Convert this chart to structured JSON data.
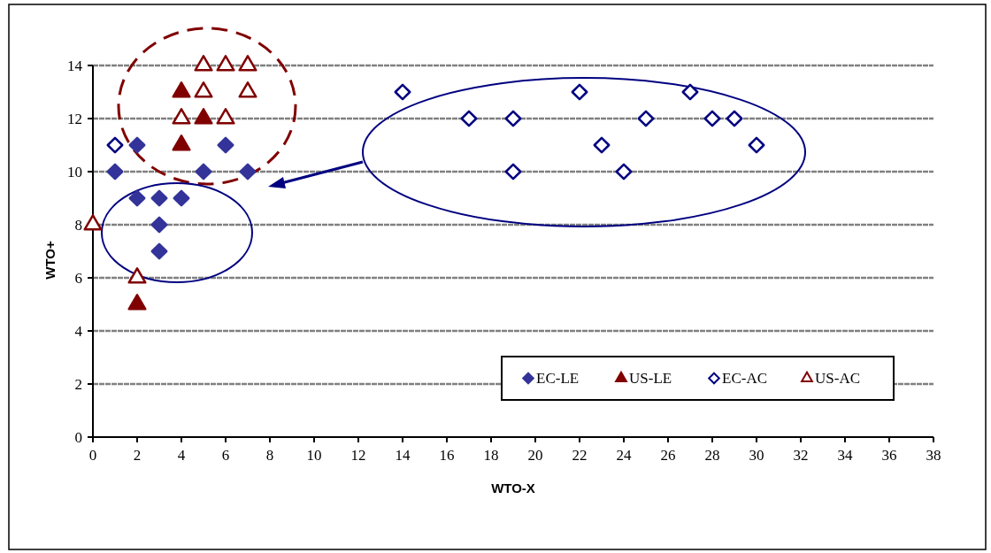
{
  "chart_data": {
    "type": "scatter",
    "xlabel": "WTO-X",
    "ylabel": "WTO+",
    "xlim": [
      0,
      38
    ],
    "xticks": [
      0,
      2,
      4,
      6,
      8,
      10,
      12,
      14,
      16,
      18,
      20,
      22,
      24,
      26,
      28,
      30,
      32,
      34,
      36,
      38
    ],
    "ylim": [
      0,
      14
    ],
    "yticks": [
      0,
      2,
      4,
      6,
      8,
      10,
      12,
      14
    ],
    "grid": "y",
    "legend": "bottom right",
    "series": [
      {
        "name": "EC-LE",
        "color": "#333399",
        "marker": "diamond",
        "x": [
          1,
          2,
          2,
          3,
          3,
          3,
          4,
          5,
          6,
          7
        ],
        "values": [
          10,
          11,
          9,
          9,
          8,
          7,
          9,
          10,
          11,
          10
        ]
      },
      {
        "name": "US-LE",
        "color": "#800000",
        "marker": "triangle",
        "x": [
          2,
          4,
          4,
          5
        ],
        "values": [
          5,
          13,
          11,
          12
        ]
      },
      {
        "name": "EC-AC",
        "color": "#000080",
        "marker": "diamond-open",
        "x": [
          1,
          14,
          17,
          19,
          19,
          22,
          23,
          24,
          25,
          27,
          28,
          29,
          30
        ],
        "values": [
          11,
          13,
          12,
          12,
          10,
          13,
          11,
          10,
          12,
          13,
          12,
          12,
          11
        ]
      },
      {
        "name": "US-AC",
        "color": "#800000",
        "marker": "triangle-open",
        "x": [
          0,
          2,
          4,
          5,
          5,
          6,
          7,
          7,
          6
        ],
        "values": [
          8,
          6,
          12,
          13,
          14,
          14,
          14,
          13,
          12
        ]
      }
    ]
  }
}
